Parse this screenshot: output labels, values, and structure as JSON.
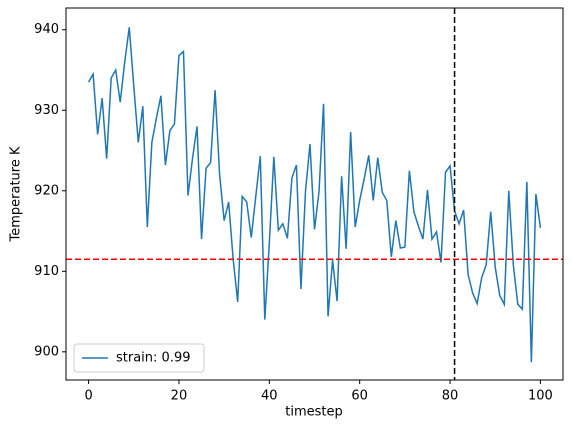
{
  "chart_data": {
    "type": "line",
    "xlabel": "timestep",
    "ylabel": "Temperature K",
    "x": [
      0,
      1,
      2,
      3,
      4,
      5,
      6,
      7,
      8,
      9,
      10,
      11,
      12,
      13,
      14,
      15,
      16,
      17,
      18,
      19,
      20,
      21,
      22,
      23,
      24,
      25,
      26,
      27,
      28,
      29,
      30,
      31,
      32,
      33,
      34,
      35,
      36,
      37,
      38,
      39,
      40,
      41,
      42,
      43,
      44,
      45,
      46,
      47,
      48,
      49,
      50,
      51,
      52,
      53,
      54,
      55,
      56,
      57,
      58,
      59,
      60,
      61,
      62,
      63,
      64,
      65,
      66,
      67,
      68,
      69,
      70,
      71,
      72,
      73,
      74,
      75,
      76,
      77,
      78,
      79,
      80,
      81,
      82,
      83,
      84,
      85,
      86,
      87,
      88,
      89,
      90,
      91,
      92,
      93,
      94,
      95,
      96,
      97,
      98,
      99,
      100
    ],
    "series": [
      {
        "name": "strain: 0.99",
        "color": "#1f77b4",
        "values": [
          933.5,
          934.5,
          927,
          931.5,
          924,
          934,
          935,
          931,
          936,
          940.3,
          933,
          926,
          930.5,
          915.5,
          926,
          929,
          931.8,
          923.2,
          927.5,
          928.3,
          936.8,
          937.3,
          919.4,
          924,
          928,
          914,
          922.8,
          923.5,
          932.5,
          922,
          916.3,
          918.6,
          911.5,
          906.2,
          919.3,
          918.6,
          914.2,
          919.3,
          924.3,
          904,
          913.5,
          924.2,
          915.1,
          915.9,
          914.1,
          921.6,
          923.2,
          907.8,
          919.9,
          925.8,
          915.2,
          919.9,
          930.8,
          904.4,
          911.4,
          906.3,
          921.8,
          912.8,
          927.3,
          915.5,
          918.8,
          921.5,
          924.4,
          918.8,
          924.1,
          919.8,
          918.8,
          911.8,
          916.3,
          912.9,
          913,
          922.5,
          917.4,
          915.6,
          914,
          920.1,
          914,
          914.9,
          911.1,
          922.3,
          923.1,
          917.5,
          915.9,
          917.6,
          909.6,
          907.3,
          906,
          909.2,
          910.8,
          917.4,
          910.5,
          907,
          905.9,
          920,
          910.8,
          905.9,
          905.3,
          921.1,
          898.7,
          919.6,
          915.4
        ]
      }
    ],
    "hlines": [
      {
        "value": 911.5,
        "color": "#ff0000"
      }
    ],
    "vlines": [
      {
        "value": 81,
        "color": "#000000"
      }
    ],
    "xlim": [
      -5,
      105
    ],
    "ylim": [
      896.5,
      942.7
    ],
    "xticks": [
      0,
      20,
      40,
      60,
      80,
      100
    ],
    "yticks": [
      900,
      910,
      920,
      930,
      940
    ],
    "legend": "lower left"
  }
}
